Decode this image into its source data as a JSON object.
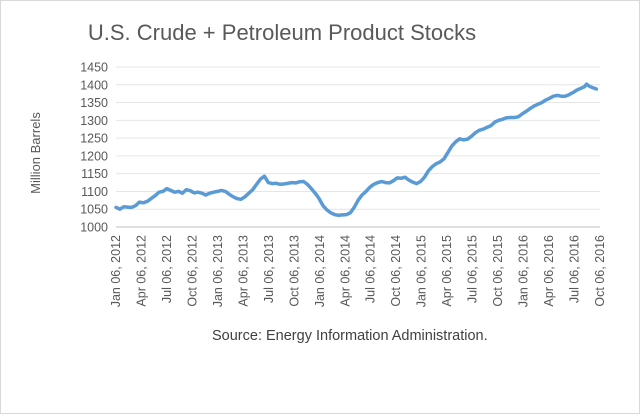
{
  "chart_data": {
    "type": "line",
    "title": "U.S. Crude + Petroleum Product Stocks",
    "ylabel": "Million Barrels",
    "xlabel": "",
    "source": "Source: Energy Information Administration.",
    "ylim": [
      1000,
      1450
    ],
    "yticks": [
      1000,
      1050,
      1100,
      1150,
      1200,
      1250,
      1300,
      1350,
      1400,
      1450
    ],
    "xticks": [
      "Jan 06, 2012",
      "Apr 06, 2012",
      "Jul 06, 2012",
      "Oct 06, 2012",
      "Jan 06, 2013",
      "Apr 06, 2013",
      "Jul 06, 2013",
      "Oct 06, 2013",
      "Jan 06, 2014",
      "Apr 06, 2014",
      "Jul 06, 2014",
      "Oct 06, 2014",
      "Jan 06, 2015",
      "Apr 06, 2015",
      "Jul 06, 2015",
      "Oct 06, 2015",
      "Jan 06, 2016",
      "Apr 06, 2016",
      "Jul 06, 2016",
      "Oct 06, 2016"
    ],
    "grid": "horizontal",
    "series": [
      {
        "color": "#5b9bd5",
        "points": [
          [
            "2012-01-06",
            1055
          ],
          [
            "2012-01-20",
            1050
          ],
          [
            "2012-02-03",
            1057
          ],
          [
            "2012-02-17",
            1056
          ],
          [
            "2012-03-02",
            1055
          ],
          [
            "2012-03-16",
            1060
          ],
          [
            "2012-03-30",
            1070
          ],
          [
            "2012-04-13",
            1068
          ],
          [
            "2012-04-27",
            1072
          ],
          [
            "2012-05-11",
            1080
          ],
          [
            "2012-05-25",
            1088
          ],
          [
            "2012-06-08",
            1098
          ],
          [
            "2012-06-22",
            1100
          ],
          [
            "2012-07-06",
            1108
          ],
          [
            "2012-07-20",
            1103
          ],
          [
            "2012-08-03",
            1098
          ],
          [
            "2012-08-17",
            1100
          ],
          [
            "2012-08-31",
            1095
          ],
          [
            "2012-09-14",
            1105
          ],
          [
            "2012-09-28",
            1102
          ],
          [
            "2012-10-12",
            1096
          ],
          [
            "2012-10-26",
            1098
          ],
          [
            "2012-11-09",
            1095
          ],
          [
            "2012-11-23",
            1090
          ],
          [
            "2012-12-07",
            1095
          ],
          [
            "2012-12-21",
            1098
          ],
          [
            "2013-01-04",
            1100
          ],
          [
            "2013-01-18",
            1103
          ],
          [
            "2013-02-01",
            1100
          ],
          [
            "2013-02-15",
            1092
          ],
          [
            "2013-03-01",
            1085
          ],
          [
            "2013-03-15",
            1080
          ],
          [
            "2013-03-29",
            1078
          ],
          [
            "2013-04-12",
            1085
          ],
          [
            "2013-04-26",
            1095
          ],
          [
            "2013-05-10",
            1105
          ],
          [
            "2013-05-24",
            1120
          ],
          [
            "2013-06-07",
            1135
          ],
          [
            "2013-06-21",
            1143
          ],
          [
            "2013-07-05",
            1125
          ],
          [
            "2013-07-19",
            1122
          ],
          [
            "2013-08-02",
            1123
          ],
          [
            "2013-08-16",
            1120
          ],
          [
            "2013-08-30",
            1121
          ],
          [
            "2013-09-13",
            1123
          ],
          [
            "2013-09-27",
            1125
          ],
          [
            "2013-10-11",
            1124
          ],
          [
            "2013-10-25",
            1127
          ],
          [
            "2013-11-08",
            1128
          ],
          [
            "2013-11-22",
            1120
          ],
          [
            "2013-12-06",
            1108
          ],
          [
            "2013-12-20",
            1095
          ],
          [
            "2014-01-03",
            1080
          ],
          [
            "2014-01-17",
            1060
          ],
          [
            "2014-01-31",
            1048
          ],
          [
            "2014-02-14",
            1040
          ],
          [
            "2014-02-28",
            1035
          ],
          [
            "2014-03-14",
            1033
          ],
          [
            "2014-03-28",
            1034
          ],
          [
            "2014-04-11",
            1035
          ],
          [
            "2014-04-25",
            1040
          ],
          [
            "2014-05-09",
            1055
          ],
          [
            "2014-05-23",
            1075
          ],
          [
            "2014-06-06",
            1090
          ],
          [
            "2014-06-20",
            1100
          ],
          [
            "2014-07-04",
            1112
          ],
          [
            "2014-07-18",
            1120
          ],
          [
            "2014-08-01",
            1125
          ],
          [
            "2014-08-15",
            1128
          ],
          [
            "2014-08-29",
            1125
          ],
          [
            "2014-09-12",
            1124
          ],
          [
            "2014-09-26",
            1130
          ],
          [
            "2014-10-10",
            1138
          ],
          [
            "2014-10-24",
            1137
          ],
          [
            "2014-11-07",
            1140
          ],
          [
            "2014-11-21",
            1132
          ],
          [
            "2014-12-05",
            1126
          ],
          [
            "2014-12-19",
            1122
          ],
          [
            "2015-01-02",
            1128
          ],
          [
            "2015-01-16",
            1140
          ],
          [
            "2015-01-30",
            1158
          ],
          [
            "2015-02-13",
            1170
          ],
          [
            "2015-02-27",
            1178
          ],
          [
            "2015-03-13",
            1183
          ],
          [
            "2015-03-27",
            1192
          ],
          [
            "2015-04-10",
            1210
          ],
          [
            "2015-04-24",
            1228
          ],
          [
            "2015-05-08",
            1240
          ],
          [
            "2015-05-22",
            1248
          ],
          [
            "2015-06-05",
            1245
          ],
          [
            "2015-06-19",
            1247
          ],
          [
            "2015-07-03",
            1255
          ],
          [
            "2015-07-17",
            1265
          ],
          [
            "2015-07-31",
            1272
          ],
          [
            "2015-08-14",
            1275
          ],
          [
            "2015-08-28",
            1280
          ],
          [
            "2015-09-11",
            1285
          ],
          [
            "2015-09-25",
            1295
          ],
          [
            "2015-10-09",
            1300
          ],
          [
            "2015-10-23",
            1303
          ],
          [
            "2015-11-06",
            1307
          ],
          [
            "2015-11-20",
            1308
          ],
          [
            "2015-12-04",
            1308
          ],
          [
            "2015-12-18",
            1310
          ],
          [
            "2016-01-01",
            1318
          ],
          [
            "2016-01-15",
            1325
          ],
          [
            "2016-01-29",
            1333
          ],
          [
            "2016-02-12",
            1340
          ],
          [
            "2016-02-26",
            1345
          ],
          [
            "2016-03-11",
            1350
          ],
          [
            "2016-03-25",
            1357
          ],
          [
            "2016-04-08",
            1362
          ],
          [
            "2016-04-22",
            1368
          ],
          [
            "2016-05-06",
            1370
          ],
          [
            "2016-05-20",
            1368
          ],
          [
            "2016-06-03",
            1368
          ],
          [
            "2016-06-17",
            1372
          ],
          [
            "2016-07-01",
            1378
          ],
          [
            "2016-07-15",
            1385
          ],
          [
            "2016-07-29",
            1390
          ],
          [
            "2016-08-12",
            1395
          ],
          [
            "2016-08-19",
            1402
          ],
          [
            "2016-08-26",
            1397
          ],
          [
            "2016-09-09",
            1392
          ],
          [
            "2016-09-23",
            1388
          ]
        ]
      }
    ]
  }
}
